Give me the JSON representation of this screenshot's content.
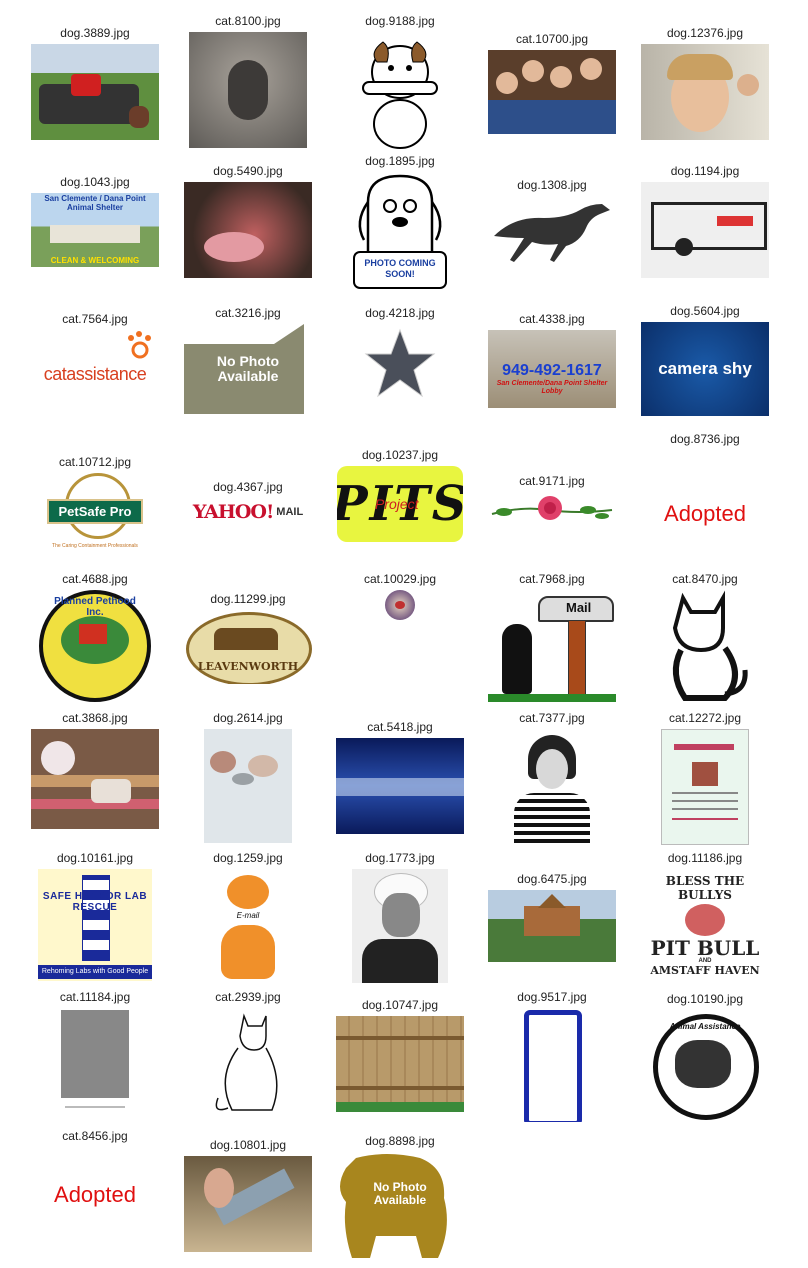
{
  "rows": [
    [
      {
        "label": "dog.3889.jpg"
      },
      {
        "label": "cat.8100.jpg"
      },
      {
        "label": "dog.9188.jpg"
      },
      {
        "label": "cat.10700.jpg"
      },
      {
        "label": "dog.12376.jpg"
      }
    ],
    [
      {
        "label": "dog.1043.jpg",
        "text_top": "San Clemente / Dana Point",
        "text_mid": "Animal Shelter",
        "text_bottom": "CLEAN & WELCOMING"
      },
      {
        "label": "dog.5490.jpg"
      },
      {
        "label": "dog.1895.jpg",
        "text": "PHOTO COMING SOON!"
      },
      {
        "label": "dog.1308.jpg"
      },
      {
        "label": "dog.1194.jpg"
      }
    ],
    [
      {
        "label": "cat.7564.jpg",
        "text": "catassistance"
      },
      {
        "label": "cat.3216.jpg",
        "text": "No Photo Available"
      },
      {
        "label": "dog.4218.jpg"
      },
      {
        "label": "cat.4338.jpg",
        "text": "949-492-1617",
        "text_small": "San Clemente/Dana Point Shelter Lobby"
      },
      {
        "label": "dog.5604.jpg",
        "text": "camera shy"
      }
    ],
    [
      {
        "label": "cat.10712.jpg",
        "text": "PetSafe Pro",
        "text_small": "The Caring Containment Professionals"
      },
      {
        "label": "dog.4367.jpg",
        "text": "YAHOO!",
        "text_small": "MAIL"
      },
      {
        "label": "dog.10237.jpg",
        "text": "PITS",
        "text_small": "Project"
      },
      {
        "label": "cat.9171.jpg"
      },
      {
        "label": "dog.8736.jpg",
        "text": "Adopted"
      }
    ],
    [
      {
        "label": "cat.4688.jpg",
        "text": "Planned Pethood Inc."
      },
      {
        "label": "dog.11299.jpg",
        "text": "LEAVENWORTH"
      },
      {
        "label": "cat.10029.jpg"
      },
      {
        "label": "cat.7968.jpg",
        "text": "Mail"
      },
      {
        "label": "cat.8470.jpg"
      }
    ],
    [
      {
        "label": "cat.3868.jpg"
      },
      {
        "label": "dog.2614.jpg"
      },
      {
        "label": "cat.5418.jpg"
      },
      {
        "label": "cat.7377.jpg"
      },
      {
        "label": "cat.12272.jpg"
      }
    ],
    [
      {
        "label": "dog.10161.jpg",
        "text": "SAFE HARBOR LAB RESCUE",
        "text_small": "Rehoming Labs with Good People"
      },
      {
        "label": "dog.1259.jpg",
        "text": "E-mail"
      },
      {
        "label": "dog.1773.jpg"
      },
      {
        "label": "dog.6475.jpg"
      },
      {
        "label": "dog.11186.jpg",
        "text_top": "BLESS THE BULLYS",
        "text": "PIT BULL",
        "text_small": "AND",
        "text_bottom": "AMSTAFF HAVEN"
      }
    ],
    [
      {
        "label": "cat.11184.jpg"
      },
      {
        "label": "cat.2939.jpg"
      },
      {
        "label": "dog.10747.jpg"
      },
      {
        "label": "dog.9517.jpg"
      },
      {
        "label": "dog.10190.jpg",
        "text": "Animal Assistance"
      }
    ],
    [
      {
        "label": "cat.8456.jpg",
        "text": "Adopted"
      },
      {
        "label": "dog.10801.jpg"
      },
      {
        "label": "dog.8898.jpg",
        "text": "No Photo Available"
      }
    ]
  ]
}
